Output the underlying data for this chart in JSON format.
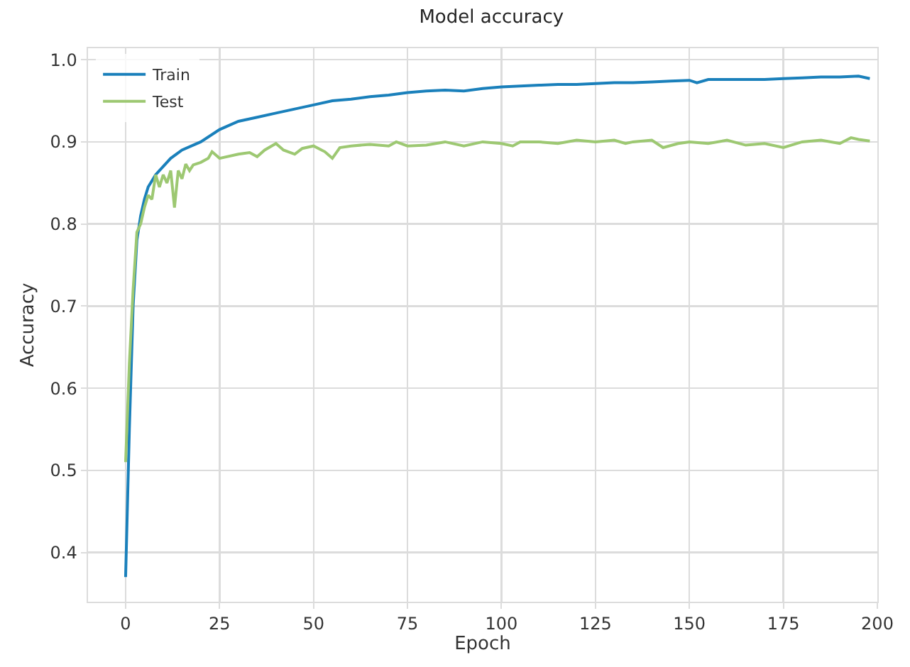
{
  "chart_data": {
    "type": "line",
    "title": "Model accuracy",
    "xlabel": "Epoch",
    "ylabel": "Accuracy",
    "xlim": [
      -10,
      200
    ],
    "xticks": [
      0,
      25,
      50,
      75,
      100,
      125,
      150,
      175,
      200
    ],
    "ylim": [
      0.34,
      1.014
    ],
    "yticks": [
      {
        "value": 0.4,
        "label": "0.4"
      },
      {
        "value": 0.5,
        "label": "0.5"
      },
      {
        "value": 0.6,
        "label": "0.6"
      },
      {
        "value": 0.7,
        "label": "0.7"
      },
      {
        "value": 0.8,
        "label": "0.8"
      },
      {
        "value": 0.9,
        "label": "0.9"
      },
      {
        "value": 1.0,
        "label": "1.0"
      }
    ],
    "grid": true,
    "legend": "top left",
    "marker": "none",
    "line_style": "solid",
    "series": [
      {
        "name": "Train",
        "color": "#1a80bb",
        "x": [
          0,
          1,
          2,
          3,
          4,
          5,
          6,
          8,
          10,
          12,
          15,
          20,
          25,
          30,
          35,
          40,
          45,
          50,
          55,
          60,
          65,
          70,
          75,
          80,
          85,
          90,
          95,
          100,
          105,
          110,
          115,
          120,
          125,
          130,
          135,
          140,
          145,
          150,
          152,
          155,
          160,
          170,
          175,
          180,
          185,
          190,
          195,
          198
        ],
        "values": [
          0.37,
          0.55,
          0.7,
          0.78,
          0.81,
          0.83,
          0.845,
          0.86,
          0.87,
          0.88,
          0.89,
          0.9,
          0.915,
          0.925,
          0.93,
          0.935,
          0.94,
          0.945,
          0.95,
          0.952,
          0.955,
          0.957,
          0.96,
          0.962,
          0.963,
          0.962,
          0.965,
          0.967,
          0.968,
          0.969,
          0.97,
          0.97,
          0.971,
          0.972,
          0.972,
          0.973,
          0.974,
          0.975,
          0.972,
          0.976,
          0.976,
          0.976,
          0.977,
          0.978,
          0.979,
          0.979,
          0.98,
          0.977
        ]
      },
      {
        "name": "Test",
        "color": "#9dc872",
        "x": [
          0,
          1,
          2,
          3,
          4,
          5,
          6,
          7,
          8,
          9,
          10,
          11,
          12,
          13,
          14,
          15,
          16,
          17,
          18,
          20,
          22,
          23,
          25,
          30,
          33,
          35,
          37,
          40,
          42,
          45,
          47,
          50,
          53,
          55,
          57,
          60,
          65,
          70,
          72,
          75,
          80,
          85,
          90,
          95,
          100,
          103,
          105,
          110,
          115,
          120,
          125,
          130,
          133,
          135,
          140,
          143,
          147,
          150,
          155,
          160,
          165,
          170,
          175,
          180,
          185,
          190,
          193,
          195,
          198
        ],
        "values": [
          0.51,
          0.63,
          0.72,
          0.79,
          0.8,
          0.82,
          0.835,
          0.83,
          0.86,
          0.845,
          0.86,
          0.85,
          0.865,
          0.82,
          0.865,
          0.855,
          0.873,
          0.865,
          0.872,
          0.875,
          0.88,
          0.888,
          0.88,
          0.885,
          0.887,
          0.882,
          0.89,
          0.898,
          0.89,
          0.885,
          0.892,
          0.895,
          0.888,
          0.88,
          0.893,
          0.895,
          0.897,
          0.895,
          0.9,
          0.895,
          0.896,
          0.9,
          0.895,
          0.9,
          0.898,
          0.895,
          0.9,
          0.9,
          0.898,
          0.902,
          0.9,
          0.902,
          0.898,
          0.9,
          0.902,
          0.893,
          0.898,
          0.9,
          0.898,
          0.902,
          0.896,
          0.898,
          0.893,
          0.9,
          0.902,
          0.898,
          0.905,
          0.903,
          0.901
        ]
      }
    ]
  }
}
